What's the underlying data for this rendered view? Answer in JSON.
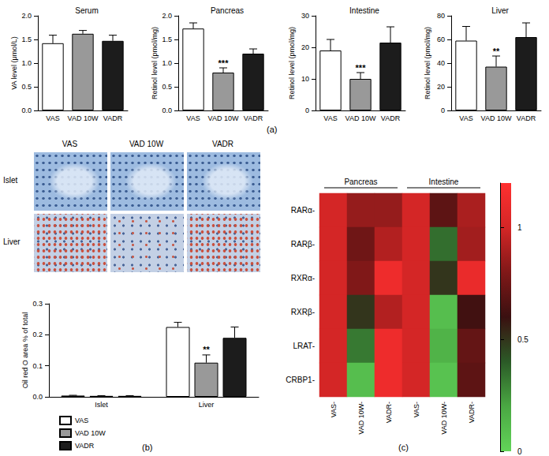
{
  "panels": {
    "labels": [
      "(a)",
      "(b)",
      "(c)"
    ],
    "micrographs": {
      "columns": [
        "VAS",
        "VAD 10W",
        "VADR"
      ],
      "rows": [
        "Islet",
        "Liver"
      ]
    }
  },
  "chart_data": [
    {
      "type": "bar",
      "title": "Serum",
      "ylabel": "VA level (μmol/L)",
      "categories": [
        "VAS",
        "VAD 10W",
        "VADR"
      ],
      "values": [
        1.42,
        1.62,
        1.47
      ],
      "errors": [
        0.17,
        0.07,
        0.12
      ],
      "colors": [
        "#ffffff",
        "#999999",
        "#1c1c1c"
      ],
      "ylim": [
        0,
        2
      ],
      "yticks": [
        {
          "value": 0,
          "label": "0.0"
        },
        0.5,
        {
          "value": 1,
          "label": "1.0"
        },
        1.5,
        {
          "value": 2,
          "label": "2.0"
        }
      ],
      "grid": false
    },
    {
      "type": "bar",
      "title": "Pancreas",
      "ylabel": "Retinol level (pmol/mg)",
      "categories": [
        "VAS",
        "VAD 10W",
        "VADR"
      ],
      "values": [
        1.73,
        0.8,
        1.2
      ],
      "errors": [
        0.12,
        0.1,
        0.1
      ],
      "colors": [
        "#ffffff",
        "#999999",
        "#1c1c1c"
      ],
      "ylim": [
        0,
        2
      ],
      "yticks": [
        {
          "value": 0,
          "label": "0.0"
        },
        0.5,
        {
          "value": 1,
          "label": "1.0"
        },
        1.5,
        {
          "value": 2,
          "label": "2.0"
        }
      ],
      "grid": false,
      "annotations": [
        {
          "category": "VAD 10W",
          "text": "***"
        }
      ]
    },
    {
      "type": "bar",
      "title": "Intestine",
      "ylabel": "Retinol level (pmol/mg)",
      "categories": [
        "VAS",
        "VAD 10W",
        "VADR"
      ],
      "values": [
        19,
        10,
        21.5
      ],
      "errors": [
        3.5,
        2,
        5
      ],
      "colors": [
        "#ffffff",
        "#999999",
        "#1c1c1c"
      ],
      "ylim": [
        0,
        30
      ],
      "yticks": [
        0,
        10,
        20,
        30
      ],
      "grid": false,
      "annotations": [
        {
          "category": "VAD 10W",
          "text": "***"
        }
      ]
    },
    {
      "type": "bar",
      "title": "Liver",
      "ylabel": "Retinol level (pmol/mg)",
      "categories": [
        "VAS",
        "VAD 10W",
        "VADR"
      ],
      "values": [
        59,
        37,
        62
      ],
      "errors": [
        12,
        9,
        12
      ],
      "colors": [
        "#ffffff",
        "#999999",
        "#1c1c1c"
      ],
      "ylim": [
        0,
        80
      ],
      "yticks": [
        0,
        20,
        40,
        60,
        80
      ],
      "grid": false,
      "annotations": [
        {
          "category": "VAD 10W",
          "text": "**"
        }
      ]
    },
    {
      "type": "bar",
      "ylabel": "Oil red O area % of total",
      "categories": [
        "Islet",
        "Liver"
      ],
      "series": [
        {
          "name": "VAS",
          "color": "#ffffff",
          "values": [
            0.004,
            0.225
          ],
          "errors": [
            0.001,
            0.015
          ]
        },
        {
          "name": "VAD 10W",
          "color": "#999999",
          "values": [
            0.003,
            0.11
          ],
          "errors": [
            0.001,
            0.025
          ]
        },
        {
          "name": "VADR",
          "color": "#1c1c1c",
          "values": [
            0.003,
            0.19
          ],
          "errors": [
            0.001,
            0.035
          ]
        }
      ],
      "ylim": [
        0,
        0.3
      ],
      "yticks": [
        {
          "value": 0,
          "label": "0.0"
        },
        0.1,
        0.2,
        0.3
      ],
      "grid": false,
      "legend": "lower left",
      "annotations": [
        {
          "series": "VAD 10W",
          "category": "Liver",
          "text": "**"
        }
      ]
    },
    {
      "type": "heatmap",
      "x": [
        "VAS-",
        "VAD 10W-",
        "VADR-",
        "VAS-",
        "VAD 10W-",
        "VADR-"
      ],
      "y": [
        "RARα-",
        "RARβ-",
        "RXRα-",
        "RXRβ-",
        "LRAT-",
        "CRBP1-"
      ],
      "groups": [
        {
          "label": "Pancreas",
          "start": 0,
          "end": 2
        },
        {
          "label": "Intestine",
          "start": 3,
          "end": 5
        }
      ],
      "values": [
        [
          1,
          0.85,
          0.85,
          1,
          0.7,
          0.9
        ],
        [
          1,
          0.75,
          0.92,
          1,
          0.35,
          0.88
        ],
        [
          1,
          0.8,
          1.12,
          1,
          0.5,
          1.1
        ],
        [
          1,
          0.5,
          0.92,
          1,
          0.1,
          0.62
        ],
        [
          1,
          0.32,
          1.12,
          1,
          0.15,
          0.72
        ],
        [
          1,
          0.1,
          1.12,
          1,
          0.08,
          0.7
        ]
      ],
      "color_range": [
        0,
        1.2
      ],
      "color_ticks": [
        0,
        0.5,
        1
      ]
    }
  ]
}
